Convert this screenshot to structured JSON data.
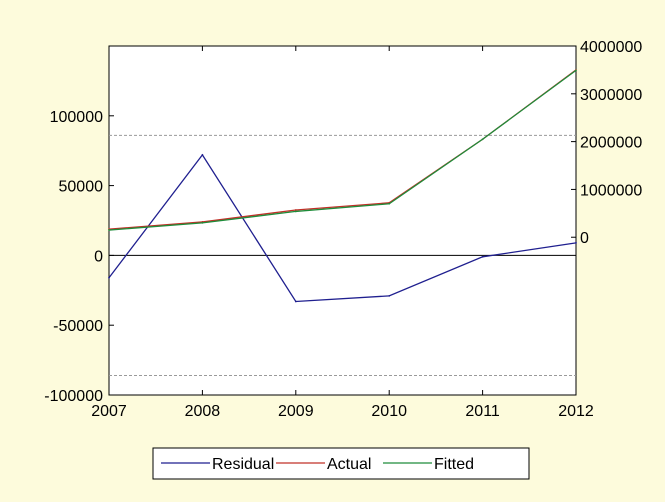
{
  "chart_data": {
    "type": "line",
    "title": "",
    "xlabel": "",
    "x": [
      "2007",
      "2008",
      "2009",
      "2010",
      "2011",
      "2012"
    ],
    "xlim": [
      2007,
      2012
    ],
    "left_axis": {
      "ylim": [
        -100000,
        150000
      ],
      "ticks": [
        100000,
        50000,
        0,
        -50000,
        -100000
      ],
      "tick_labels": [
        "100000",
        "50000",
        "0",
        "-50000",
        "-100000"
      ]
    },
    "right_axis": {
      "ylim": [
        -3300000,
        4000000
      ],
      "ticks": [
        4000000,
        3000000,
        2000000,
        1000000,
        0
      ],
      "tick_labels": [
        "4000000",
        "3000000",
        "2000000",
        "1000000",
        "0"
      ]
    },
    "reference_lines": {
      "zero_solid": 0,
      "dashed_upper": 86000,
      "dashed_lower": -86000
    },
    "series": [
      {
        "name": "Residual",
        "axis": "left",
        "color": "#1F1F8F",
        "values": [
          -16000,
          72000,
          -33000,
          -29000,
          -1000,
          9000
        ]
      },
      {
        "name": "Actual",
        "axis": "right",
        "color": "#C03028",
        "values": [
          170000,
          320000,
          570000,
          720000,
          2050000,
          3500000
        ]
      },
      {
        "name": "Fitted",
        "axis": "right",
        "color": "#1E8C3A",
        "values": [
          150000,
          300000,
          540000,
          700000,
          2050000,
          3490000
        ]
      }
    ],
    "legend_position": "bottom-center",
    "grid": false
  }
}
